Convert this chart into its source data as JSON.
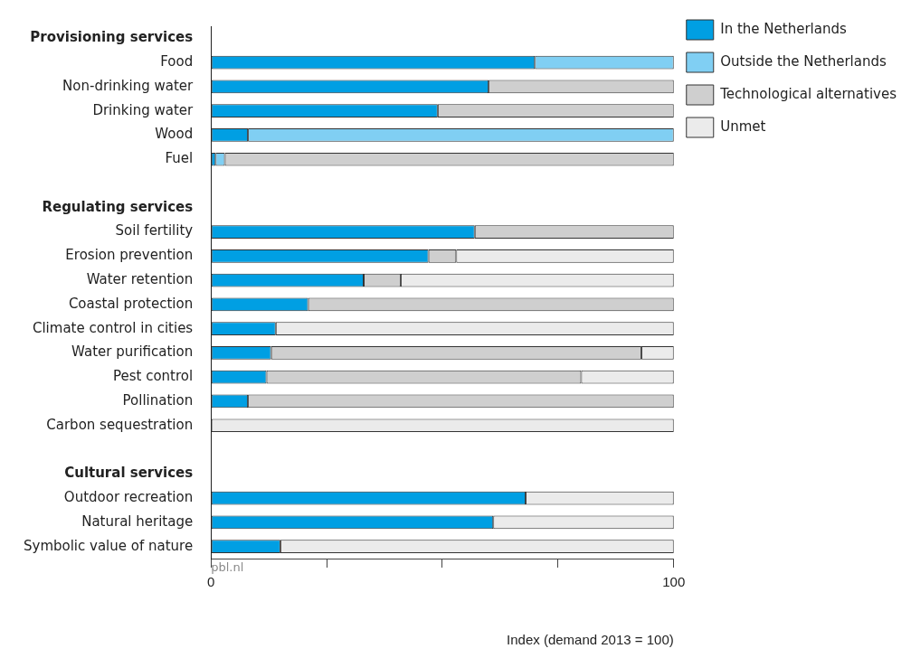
{
  "chart_data": {
    "type": "bar",
    "orientation": "horizontal",
    "stacked": true,
    "categories": [
      "Provisioning services",
      "Food",
      "Non-drinking water",
      "Drinking water",
      "Wood",
      "Fuel",
      null,
      "Regulating services",
      "Soil fertility",
      "Erosion prevention",
      "Water retention",
      "Coastal protection",
      "Climate control in cities",
      "Water purification",
      "Pest control",
      "Pollination",
      "Carbon sequestration",
      null,
      "Cultural services",
      "Outdoor recreation",
      "Natural heritage",
      "Symbolic value of nature"
    ],
    "series": [
      {
        "name": "In the Netherlands",
        "color": "#009fe3",
        "values": [
          null,
          70,
          60,
          49,
          8,
          1,
          null,
          null,
          57,
          47,
          33,
          21,
          14,
          13,
          12,
          8,
          null,
          null,
          null,
          68,
          61,
          15
        ]
      },
      {
        "name": "Outside the Netherlands",
        "color": "#80cff3",
        "values": [
          null,
          30,
          null,
          null,
          92,
          2,
          null,
          null,
          null,
          null,
          null,
          null,
          null,
          null,
          null,
          null,
          null,
          null,
          null,
          null,
          null,
          null
        ]
      },
      {
        "name": "Technological alternatives",
        "color": "#cfcfcf",
        "values": [
          null,
          null,
          40,
          51,
          null,
          97,
          null,
          null,
          43,
          6,
          8,
          79,
          null,
          80,
          68,
          92,
          null,
          null,
          null,
          null,
          null,
          null
        ]
      },
      {
        "name": "Unmet",
        "color": "#ebebeb",
        "values": [
          null,
          null,
          null,
          null,
          null,
          null,
          null,
          null,
          null,
          47,
          59,
          null,
          86,
          7,
          20,
          null,
          100,
          null,
          null,
          32,
          39,
          85
        ]
      }
    ],
    "xlim": [
      0,
      100
    ],
    "xticks": [
      0,
      {
        "value": 25,
        "label": null
      },
      {
        "value": 50,
        "label": null
      },
      {
        "value": 75,
        "label": null
      },
      100
    ],
    "xlabel": "Index (demand 2013 = 100)",
    "grid": false,
    "legend": "top right",
    "annotations": [
      "pbl.nl"
    ]
  }
}
